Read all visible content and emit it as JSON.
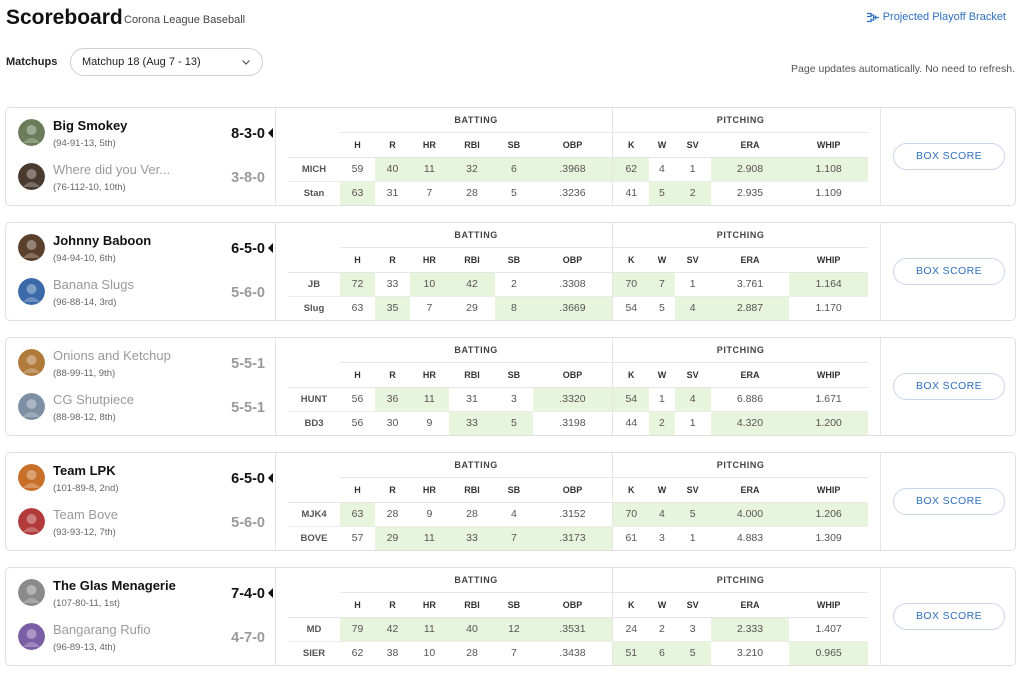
{
  "header": {
    "title": "Scoreboard",
    "subtitle": "Corona League Baseball",
    "bracket_link": "Projected Playoff Bracket"
  },
  "matchups": {
    "label": "Matchups",
    "selected": "Matchup 18 (Aug 7 - 13)",
    "auto_update_note": "Page updates automatically. No need to refresh."
  },
  "stat_groups": {
    "batting": "BATTING",
    "pitching": "PITCHING"
  },
  "batting_columns": [
    "H",
    "R",
    "HR",
    "RBI",
    "SB",
    "OBP"
  ],
  "pitching_columns": [
    "K",
    "W",
    "SV",
    "ERA",
    "WHIP"
  ],
  "box_score_label": "BOX SCORE",
  "games": [
    {
      "teams": [
        {
          "name": "Big Smokey",
          "record": "(94-91-13, 5th)",
          "score": "8-3-0",
          "leading": true,
          "avatar_color": "#6b7c5a"
        },
        {
          "name": "Where did you Ver...",
          "record": "(76-112-10, 10th)",
          "score": "3-8-0",
          "leading": false,
          "avatar_color": "#4a3a2e"
        }
      ],
      "rows": [
        {
          "abbr": "MICH",
          "batting": [
            "59",
            "40",
            "11",
            "32",
            "6",
            ".3968"
          ],
          "pitching": [
            "62",
            "4",
            "1",
            "2.908",
            "1.108"
          ]
        },
        {
          "abbr": "Stan",
          "batting": [
            "63",
            "31",
            "7",
            "28",
            "5",
            ".3236"
          ],
          "pitching": [
            "41",
            "5",
            "2",
            "2.935",
            "1.109"
          ]
        }
      ],
      "winners": [
        [
          false,
          true,
          true,
          true,
          true,
          true,
          true,
          false,
          false,
          true,
          true
        ],
        [
          true,
          false,
          false,
          false,
          false,
          false,
          false,
          true,
          true,
          false,
          false
        ]
      ]
    },
    {
      "teams": [
        {
          "name": "Johnny Baboon",
          "record": "(94-94-10, 6th)",
          "score": "6-5-0",
          "leading": true,
          "avatar_color": "#5a3f2b"
        },
        {
          "name": "Banana Slugs",
          "record": "(96-88-14, 3rd)",
          "score": "5-6-0",
          "leading": false,
          "avatar_color": "#3b6aa8"
        }
      ],
      "rows": [
        {
          "abbr": "JB",
          "batting": [
            "72",
            "33",
            "10",
            "42",
            "2",
            ".3308"
          ],
          "pitching": [
            "70",
            "7",
            "1",
            "3.761",
            "1.164"
          ]
        },
        {
          "abbr": "Slug",
          "batting": [
            "63",
            "35",
            "7",
            "29",
            "8",
            ".3669"
          ],
          "pitching": [
            "54",
            "5",
            "4",
            "2.887",
            "1.170"
          ]
        }
      ],
      "winners": [
        [
          true,
          false,
          true,
          true,
          false,
          false,
          true,
          true,
          false,
          false,
          true
        ],
        [
          false,
          true,
          false,
          false,
          true,
          true,
          false,
          false,
          true,
          true,
          false
        ]
      ]
    },
    {
      "teams": [
        {
          "name": "Onions and Ketchup",
          "record": "(88-99-11, 9th)",
          "score": "5-5-1",
          "leading": false,
          "avatar_color": "#b07a3a"
        },
        {
          "name": "CG Shutpiece",
          "record": "(88-98-12, 8th)",
          "score": "5-5-1",
          "leading": false,
          "avatar_color": "#7d8fa3"
        }
      ],
      "rows": [
        {
          "abbr": "HUNT",
          "batting": [
            "56",
            "36",
            "11",
            "31",
            "3",
            ".3320"
          ],
          "pitching": [
            "54",
            "1",
            "4",
            "6.886",
            "1.671"
          ]
        },
        {
          "abbr": "BD3",
          "batting": [
            "56",
            "30",
            "9",
            "33",
            "5",
            ".3198"
          ],
          "pitching": [
            "44",
            "2",
            "1",
            "4.320",
            "1.200"
          ]
        }
      ],
      "winners": [
        [
          false,
          true,
          true,
          false,
          false,
          true,
          true,
          false,
          true,
          false,
          false
        ],
        [
          false,
          false,
          false,
          true,
          true,
          false,
          false,
          true,
          false,
          true,
          true
        ]
      ]
    },
    {
      "teams": [
        {
          "name": "Team LPK",
          "record": "(101-89-8, 2nd)",
          "score": "6-5-0",
          "leading": true,
          "avatar_color": "#c8702a"
        },
        {
          "name": "Team Bove",
          "record": "(93-93-12, 7th)",
          "score": "5-6-0",
          "leading": false,
          "avatar_color": "#b33a3a"
        }
      ],
      "rows": [
        {
          "abbr": "MJK4",
          "batting": [
            "63",
            "28",
            "9",
            "28",
            "4",
            ".3152"
          ],
          "pitching": [
            "70",
            "4",
            "5",
            "4.000",
            "1.206"
          ]
        },
        {
          "abbr": "BOVE",
          "batting": [
            "57",
            "29",
            "11",
            "33",
            "7",
            ".3173"
          ],
          "pitching": [
            "61",
            "3",
            "1",
            "4.883",
            "1.309"
          ]
        }
      ],
      "winners": [
        [
          true,
          false,
          false,
          false,
          false,
          false,
          true,
          true,
          true,
          true,
          true
        ],
        [
          false,
          true,
          true,
          true,
          true,
          true,
          false,
          false,
          false,
          false,
          false
        ]
      ]
    },
    {
      "teams": [
        {
          "name": "The Glas Menagerie",
          "record": "(107-80-11, 1st)",
          "score": "7-4-0",
          "leading": true,
          "avatar_color": "#8a8a8a"
        },
        {
          "name": "Bangarang Rufio",
          "record": "(96-89-13, 4th)",
          "score": "4-7-0",
          "leading": false,
          "avatar_color": "#7a5fa6"
        }
      ],
      "rows": [
        {
          "abbr": "MD",
          "batting": [
            "79",
            "42",
            "11",
            "40",
            "12",
            ".3531"
          ],
          "pitching": [
            "24",
            "2",
            "3",
            "2.333",
            "1.407"
          ]
        },
        {
          "abbr": "SIER",
          "batting": [
            "62",
            "38",
            "10",
            "28",
            "7",
            ".3438"
          ],
          "pitching": [
            "51",
            "6",
            "5",
            "3.210",
            "0.965"
          ]
        }
      ],
      "winners": [
        [
          true,
          true,
          true,
          true,
          true,
          true,
          false,
          false,
          false,
          true,
          false
        ],
        [
          false,
          false,
          false,
          false,
          false,
          false,
          true,
          true,
          true,
          false,
          true
        ]
      ]
    }
  ]
}
